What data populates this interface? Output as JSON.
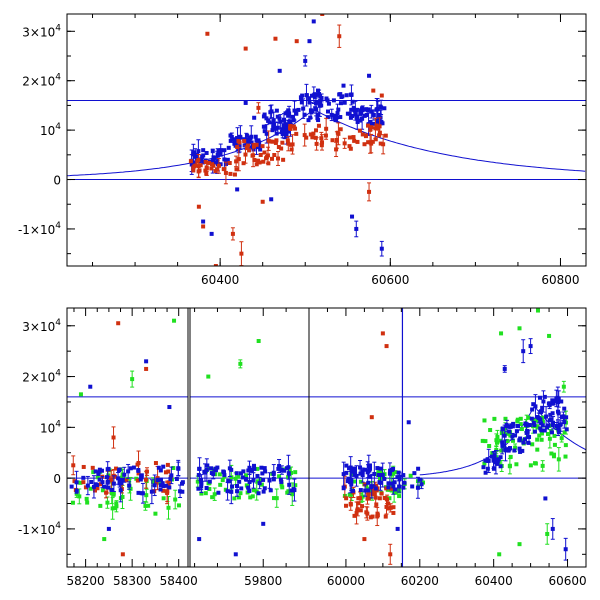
{
  "chart_data": [
    {
      "type": "scatter",
      "panel": "top",
      "xlim": [
        60220,
        60830
      ],
      "ylim": [
        -17500,
        33500
      ],
      "xticks": [
        60400,
        60600,
        60800
      ],
      "xtick_labels": [
        "60400",
        "60600",
        "60800"
      ],
      "yticks": [
        -10000,
        0,
        10000,
        20000,
        30000
      ],
      "ytick_labels": [
        {
          "base": "-1×10",
          "exp": "4"
        },
        {
          "base": "0",
          "exp": ""
        },
        {
          "base": "10",
          "exp": "4"
        },
        {
          "base": "2×10",
          "exp": "4"
        },
        {
          "base": "3×10",
          "exp": "4"
        }
      ],
      "hlines": [
        0,
        16000
      ],
      "model_curve": {
        "peak_x": 60510,
        "peak_y": 14200,
        "tau_left": 100,
        "tau_right": 150,
        "color": "#1010d0"
      },
      "series": [
        {
          "color": "#1010d0",
          "clusters": [
            {
              "x0": 60365,
              "x1": 60410,
              "y0": 3000,
              "y1": 6000,
              "n": 40
            },
            {
              "x0": 60410,
              "x1": 60450,
              "y0": 6000,
              "y1": 9000,
              "n": 40
            },
            {
              "x0": 60450,
              "x1": 60490,
              "y0": 9000,
              "y1": 14000,
              "n": 50
            },
            {
              "x0": 60490,
              "x1": 60560,
              "y0": 12000,
              "y1": 17500,
              "n": 70
            },
            {
              "x0": 60560,
              "x1": 60595,
              "y0": 11000,
              "y1": 15000,
              "n": 40
            }
          ],
          "outliers": [
            [
              60420,
              -2000
            ],
            [
              60430,
              15500
            ],
            [
              60440,
              12500
            ],
            [
              60470,
              22000
            ],
            [
              60480,
              14000
            ],
            [
              60500,
              24000
            ],
            [
              60505,
              28000
            ],
            [
              60510,
              32000
            ],
            [
              60515,
              18000
            ],
            [
              60555,
              -7500
            ],
            [
              60560,
              -10000
            ],
            [
              60590,
              -14000
            ],
            [
              60380,
              -8500
            ],
            [
              60390,
              -11000
            ],
            [
              60460,
              -4000
            ],
            [
              60545,
              19000
            ],
            [
              60575,
              21000
            ]
          ]
        },
        {
          "color": "#d03010",
          "clusters": [
            {
              "x0": 60365,
              "x1": 60420,
              "y0": 1000,
              "y1": 4000,
              "n": 30
            },
            {
              "x0": 60420,
              "x1": 60480,
              "y0": 3000,
              "y1": 8000,
              "n": 40
            },
            {
              "x0": 60480,
              "x1": 60595,
              "y0": 6000,
              "y1": 11000,
              "n": 60
            }
          ],
          "outliers": [
            [
              60385,
              29500
            ],
            [
              60430,
              26500
            ],
            [
              60465,
              28500
            ],
            [
              60490,
              28000
            ],
            [
              60520,
              33500
            ],
            [
              60540,
              29000
            ],
            [
              60590,
              17000
            ],
            [
              60375,
              -5500
            ],
            [
              60380,
              -9500
            ],
            [
              60415,
              -11000
            ],
            [
              60425,
              -15000
            ],
            [
              60395,
              -17500
            ],
            [
              60450,
              -4500
            ],
            [
              60575,
              -2500
            ],
            [
              60580,
              18000
            ],
            [
              60445,
              14500
            ]
          ]
        }
      ]
    },
    {
      "type": "scatter",
      "panel": "bottom",
      "segments": [
        {
          "xlim": [
            58160,
            58420
          ]
        },
        {
          "xlim": [
            59640,
            59900
          ]
        },
        {
          "xlim": [
            59900,
            60650
          ]
        }
      ],
      "ylim": [
        -17500,
        33500
      ],
      "xticks": [
        58200,
        58300,
        58400,
        59800,
        60000,
        60200,
        60400,
        60600
      ],
      "xtick_labels": [
        "58200",
        "58300",
        "58400",
        "59800",
        "60000",
        "60200",
        "60400",
        "60600"
      ],
      "yticks": [
        -10000,
        0,
        10000,
        20000,
        30000
      ],
      "ytick_labels": [
        {
          "base": "-1×10",
          "exp": "4"
        },
        {
          "base": "0",
          "exp": ""
        },
        {
          "base": "10",
          "exp": "4"
        },
        {
          "base": "2×10",
          "exp": "4"
        },
        {
          "base": "3×10",
          "exp": "4"
        }
      ],
      "hlines": [
        0,
        16000
      ],
      "vline": 60153,
      "model_curve": {
        "peak_x": 60510,
        "peak_y": 14200,
        "tau_left": 100,
        "tau_right": 150,
        "color": "#1010d0"
      },
      "series": [
        {
          "color": "#20e020",
          "clusters": [
            {
              "x0": 58170,
              "x1": 58410,
              "y0": -6000,
              "y1": 2000,
              "n": 50
            },
            {
              "x0": 59650,
              "x1": 59870,
              "y0": -4000,
              "y1": 2000,
              "n": 50
            },
            {
              "x0": 59990,
              "x1": 60210,
              "y0": -4000,
              "y1": 1500,
              "n": 40
            },
            {
              "x0": 60370,
              "x1": 60600,
              "y0": 2000,
              "y1": 12000,
              "n": 80
            }
          ],
          "outliers": [
            [
              58190,
              16500
            ],
            [
              58300,
              19500
            ],
            [
              58350,
              -7000
            ],
            [
              58390,
              31000
            ],
            [
              58240,
              -12000
            ],
            [
              59790,
              27000
            ],
            [
              59750,
              22500
            ],
            [
              59680,
              20000
            ],
            [
              60420,
              28500
            ],
            [
              60470,
              29500
            ],
            [
              60520,
              33000
            ],
            [
              60550,
              28000
            ],
            [
              60590,
              18000
            ],
            [
              60470,
              -13000
            ],
            [
              60545,
              -11000
            ],
            [
              60415,
              -15000
            ]
          ]
        },
        {
          "color": "#d03010",
          "clusters": [
            {
              "x0": 58170,
              "x1": 58410,
              "y0": -3000,
              "y1": 3000,
              "n": 40
            },
            {
              "x0": 59990,
              "x1": 60130,
              "y0": -8000,
              "y1": -1000,
              "n": 50
            }
          ],
          "outliers": [
            [
              58270,
              30500
            ],
            [
              58280,
              -15000
            ],
            [
              58330,
              21500
            ],
            [
              58260,
              8000
            ],
            [
              60100,
              28500
            ],
            [
              60110,
              26000
            ],
            [
              60070,
              12000
            ],
            [
              60050,
              -12000
            ],
            [
              60120,
              -15000
            ]
          ]
        },
        {
          "color": "#1010d0",
          "clusters": [
            {
              "x0": 58170,
              "x1": 58410,
              "y0": -3000,
              "y1": 2500,
              "n": 70
            },
            {
              "x0": 59650,
              "x1": 59870,
              "y0": -3000,
              "y1": 2500,
              "n": 80
            },
            {
              "x0": 59990,
              "x1": 60210,
              "y0": -2500,
              "y1": 2500,
              "n": 70
            },
            {
              "x0": 60370,
              "x1": 60420,
              "y0": 1000,
              "y1": 5000,
              "n": 20
            },
            {
              "x0": 60420,
              "x1": 60500,
              "y0": 5000,
              "y1": 11000,
              "n": 40
            },
            {
              "x0": 60500,
              "x1": 60600,
              "y0": 9000,
              "y1": 16000,
              "n": 60
            }
          ],
          "outliers": [
            [
              58210,
              18000
            ],
            [
              58330,
              23000
            ],
            [
              58380,
              14000
            ],
            [
              58250,
              -10000
            ],
            [
              59660,
              -12000
            ],
            [
              59740,
              -15000
            ],
            [
              59800,
              -9000
            ],
            [
              60140,
              -10000
            ],
            [
              60170,
              11000
            ],
            [
              60430,
              21500
            ],
            [
              60480,
              25000
            ],
            [
              60500,
              26000
            ],
            [
              60560,
              -10000
            ],
            [
              60595,
              -14000
            ],
            [
              60540,
              -4000
            ]
          ]
        }
      ]
    }
  ]
}
